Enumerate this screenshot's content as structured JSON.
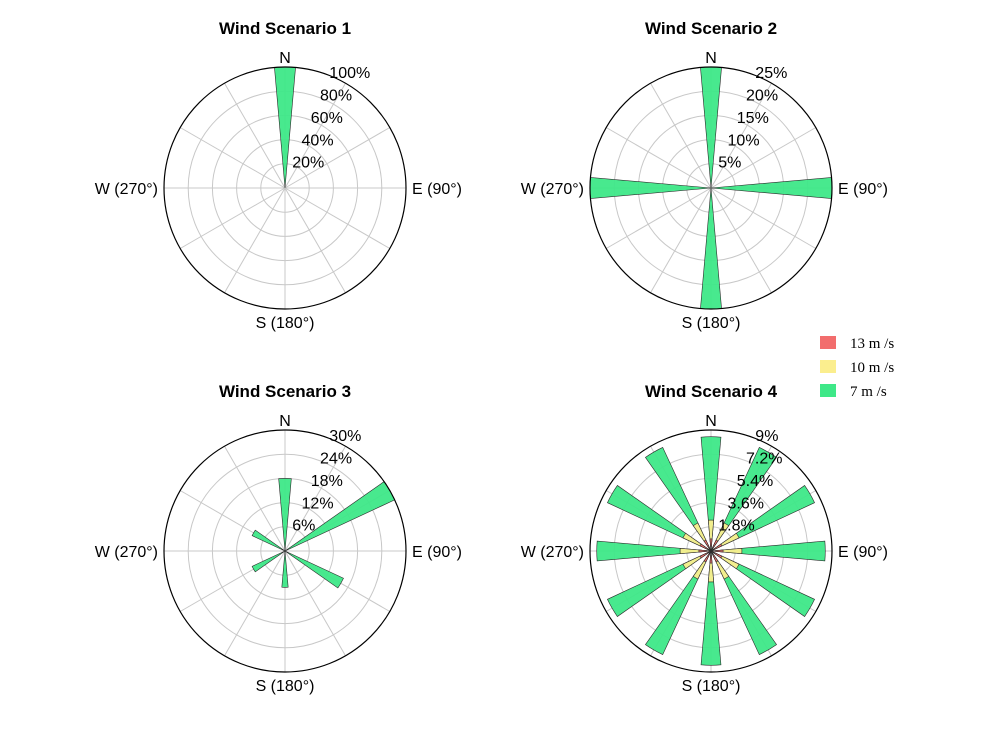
{
  "chart_data": [
    {
      "type": "polar_bar",
      "title": "Wind Scenario 1",
      "r_ticks": [
        "20%",
        "40%",
        "60%",
        "80%",
        "100%"
      ],
      "r_max": 100,
      "direction_labels": {
        "N": "N",
        "E": "E (90°)",
        "S": "S (180°)",
        "W": "W (270°)"
      },
      "series": [
        {
          "speed": "7 m/s",
          "bars": [
            {
              "dir": 0,
              "value": 100
            }
          ]
        }
      ]
    },
    {
      "type": "polar_bar",
      "title": "Wind Scenario 2",
      "r_ticks": [
        "5%",
        "10%",
        "15%",
        "20%",
        "25%"
      ],
      "r_max": 25,
      "direction_labels": {
        "N": "N",
        "E": "E (90°)",
        "S": "S (180°)",
        "W": "W (270°)"
      },
      "series": [
        {
          "speed": "7 m/s",
          "bars": [
            {
              "dir": 0,
              "value": 25
            },
            {
              "dir": 90,
              "value": 25
            },
            {
              "dir": 180,
              "value": 25
            },
            {
              "dir": 270,
              "value": 25
            }
          ]
        }
      ]
    },
    {
      "type": "polar_bar",
      "title": "Wind Scenario 3",
      "r_ticks": [
        "6%",
        "12%",
        "18%",
        "24%",
        "30%"
      ],
      "r_max": 30,
      "direction_labels": {
        "N": "N",
        "E": "E (90°)",
        "S": "S (180°)",
        "W": "W (270°)"
      },
      "series": [
        {
          "speed": "7 m/s",
          "bars": [
            {
              "dir": 0,
              "value": 18
            },
            {
              "dir": 60,
              "value": 30
            },
            {
              "dir": 120,
              "value": 16
            },
            {
              "dir": 180,
              "value": 9
            },
            {
              "dir": 240,
              "value": 9
            },
            {
              "dir": 300,
              "value": 9
            }
          ]
        }
      ]
    },
    {
      "type": "polar_bar",
      "title": "Wind Scenario 4",
      "r_ticks": [
        "1.8%",
        "3.6%",
        "5.4%",
        "7.2%",
        "9%"
      ],
      "r_max": 9,
      "direction_labels": {
        "N": "N",
        "E": "E (90°)",
        "S": "S (180°)",
        "W": "W (270°)"
      },
      "series": [
        {
          "speed": "7 m/s",
          "bars": [
            {
              "dir": 0,
              "value": 8.5
            },
            {
              "dir": 30,
              "value": 8.5
            },
            {
              "dir": 60,
              "value": 8.5
            },
            {
              "dir": 90,
              "value": 8.5
            },
            {
              "dir": 120,
              "value": 8.5
            },
            {
              "dir": 150,
              "value": 8.5
            },
            {
              "dir": 180,
              "value": 8.5
            },
            {
              "dir": 210,
              "value": 8.5
            },
            {
              "dir": 240,
              "value": 8.5
            },
            {
              "dir": 270,
              "value": 8.5
            },
            {
              "dir": 300,
              "value": 8.5
            },
            {
              "dir": 330,
              "value": 8.5
            }
          ]
        },
        {
          "speed": "10 m/s",
          "bars": [
            {
              "dir": 0,
              "value": 2.3
            },
            {
              "dir": 30,
              "value": 2.3
            },
            {
              "dir": 60,
              "value": 2.3
            },
            {
              "dir": 90,
              "value": 2.3
            },
            {
              "dir": 120,
              "value": 2.3
            },
            {
              "dir": 150,
              "value": 2.3
            },
            {
              "dir": 180,
              "value": 2.3
            },
            {
              "dir": 210,
              "value": 2.3
            },
            {
              "dir": 240,
              "value": 2.3
            },
            {
              "dir": 270,
              "value": 2.3
            },
            {
              "dir": 300,
              "value": 2.3
            },
            {
              "dir": 330,
              "value": 2.3
            }
          ]
        },
        {
          "speed": "13 m/s",
          "bars": [
            {
              "dir": 0,
              "value": 0.9
            },
            {
              "dir": 30,
              "value": 0.9
            },
            {
              "dir": 60,
              "value": 0.9
            },
            {
              "dir": 90,
              "value": 0.9
            },
            {
              "dir": 120,
              "value": 0.9
            },
            {
              "dir": 150,
              "value": 0.9
            },
            {
              "dir": 180,
              "value": 0.9
            },
            {
              "dir": 210,
              "value": 0.9
            },
            {
              "dir": 240,
              "value": 0.9
            },
            {
              "dir": 270,
              "value": 0.9
            },
            {
              "dir": 300,
              "value": 0.9
            },
            {
              "dir": 330,
              "value": 0.9
            }
          ]
        }
      ]
    }
  ],
  "legend": {
    "entries": [
      {
        "label": "13 m /s",
        "color": "#f26d6d"
      },
      {
        "label": "10 m /s",
        "color": "#fbee8e"
      },
      {
        "label": "7 m /s",
        "color": "#3ee888"
      }
    ]
  },
  "colors": {
    "7 m/s": "#3ee888",
    "10 m/s": "#fbee8e",
    "13 m/s": "#f26d6d"
  },
  "bar_width_deg": 10
}
